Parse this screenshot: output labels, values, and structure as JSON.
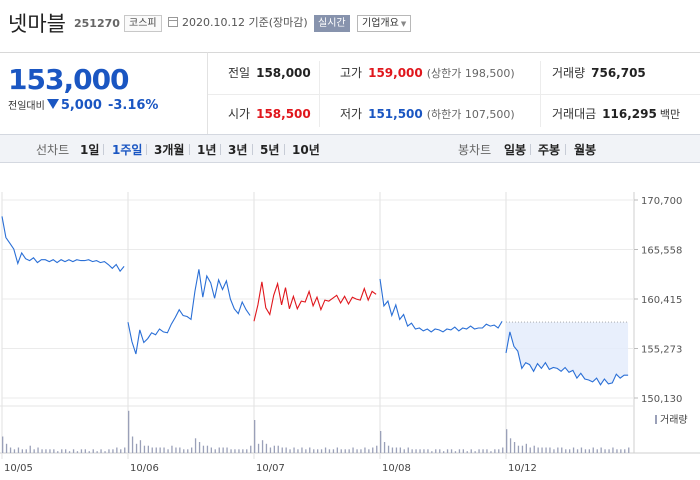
{
  "header": {
    "name": "넷마블",
    "code": "251270",
    "market": "코스피",
    "date": "2020.10.12",
    "basis": "기준(장마감)",
    "realtime_label": "실시간",
    "overview_label": "기업개요"
  },
  "price": {
    "current": "153,000",
    "change_label": "전일대비",
    "change": "5,000",
    "rate": "-3.16%"
  },
  "quotes": {
    "prev_close_label": "전일",
    "prev_close": "158,000",
    "high_label": "고가",
    "high": "159,000",
    "upper_limit": "(상한가 198,500)",
    "volume_label": "거래량",
    "volume": "756,705",
    "open_label": "시가",
    "open": "158,500",
    "low_label": "저가",
    "low": "151,500",
    "lower_limit": "(하한가 107,500)",
    "amount_label": "거래대금",
    "amount": "116,295",
    "amount_unit": "백만"
  },
  "tabs": {
    "line_label": "선차트",
    "line_periods": [
      "1일",
      "1주일",
      "3개월",
      "1년",
      "3년",
      "5년",
      "10년"
    ],
    "selected_period": "1주일",
    "candle_label": "봉차트",
    "candle_periods": [
      "일봉",
      "주봉",
      "월봉"
    ]
  },
  "colors": {
    "accent": "#1a56c2",
    "up": "#e0161c",
    "down": "#1a56c2",
    "line": "#2a6fd6",
    "volume": "#9aa0b8"
  },
  "chart_data": {
    "type": "line",
    "x_labels": [
      "10/05",
      "10/06",
      "10/07",
      "10/08",
      "10/12"
    ],
    "y_ticks": [
      "170,700",
      "165,558",
      "160,415",
      "155,273",
      "150,130"
    ],
    "ylim": [
      150130,
      170700
    ],
    "legend_volume": "거래량",
    "prev_close": 158000,
    "series": [
      {
        "day": "10/05",
        "values": [
          169000,
          166800,
          166200,
          165600,
          164100,
          165200,
          164600,
          164400,
          164700,
          164200,
          164500,
          164500,
          164300,
          164500,
          164200,
          164500,
          164300,
          164500,
          164300,
          164500,
          164400,
          164400,
          164500,
          164300,
          164400,
          164200,
          164300,
          164000,
          163600,
          164000,
          163300,
          163800
        ]
      },
      {
        "day": "10/06",
        "values": [
          158000,
          156000,
          154700,
          157200,
          155900,
          156300,
          156900,
          156700,
          157300,
          157000,
          156900,
          157800,
          158500,
          159300,
          158700,
          158600,
          158300,
          161200,
          163500,
          160600,
          162800,
          162100,
          160500,
          162400,
          161400,
          162300,
          160400,
          159400,
          158900,
          160100,
          159300,
          158700
        ]
      },
      {
        "day": "10/07",
        "values": [
          158100,
          159800,
          162200,
          159500,
          158800,
          160800,
          162000,
          159800,
          161600,
          159400,
          160700,
          159400,
          160200,
          160100,
          161200,
          159700,
          160600,
          159300,
          160300,
          160200,
          160500,
          160800,
          160000,
          160700,
          159900,
          160600,
          160400,
          160300,
          161500,
          160300,
          161200,
          160900
        ]
      },
      {
        "day": "10/08",
        "values": [
          162500,
          159700,
          160200,
          158700,
          159800,
          158300,
          158800,
          157600,
          157900,
          157300,
          157400,
          157100,
          157300,
          157000,
          157300,
          157200,
          157000,
          157300,
          157200,
          157500,
          157100,
          157400,
          157300,
          157600,
          157300,
          157400,
          157400,
          157800,
          157600,
          157700,
          157400,
          158100
        ]
      },
      {
        "day": "10/12",
        "values": [
          154800,
          157000,
          155500,
          155000,
          153200,
          153800,
          153600,
          152900,
          153700,
          153200,
          153800,
          153100,
          153300,
          153200,
          152900,
          153300,
          152800,
          153000,
          152200,
          152700,
          152100,
          152000,
          151800,
          152200,
          151500,
          152100,
          151600,
          151700,
          152600,
          152200,
          152500,
          152500
        ]
      }
    ],
    "volume": {
      "10/05": [
        9,
        5,
        3,
        2,
        3,
        2,
        2,
        4,
        2,
        3,
        2,
        2,
        2,
        2,
        1,
        2,
        2,
        1,
        2,
        1,
        2,
        2,
        1,
        2,
        1,
        2,
        1,
        2,
        2,
        3,
        2,
        3
      ],
      "10/06": [
        23,
        9,
        5,
        7,
        4,
        4,
        3,
        3,
        3,
        3,
        2,
        4,
        3,
        3,
        2,
        2,
        3,
        8,
        6,
        4,
        4,
        3,
        2,
        3,
        3,
        3,
        2,
        2,
        2,
        2,
        2,
        4
      ],
      "10/07": [
        18,
        5,
        7,
        5,
        3,
        4,
        4,
        3,
        3,
        2,
        3,
        2,
        3,
        2,
        3,
        2,
        2,
        2,
        3,
        2,
        2,
        3,
        2,
        2,
        2,
        3,
        2,
        2,
        3,
        2,
        3,
        4
      ],
      "10/08": [
        12,
        6,
        4,
        3,
        3,
        3,
        2,
        3,
        2,
        2,
        2,
        2,
        2,
        1,
        2,
        2,
        1,
        2,
        2,
        1,
        2,
        2,
        1,
        2,
        1,
        2,
        2,
        2,
        1,
        2,
        2,
        3
      ],
      "10/12": [
        13,
        8,
        6,
        4,
        4,
        5,
        3,
        4,
        3,
        3,
        3,
        3,
        2,
        3,
        3,
        2,
        2,
        3,
        2,
        3,
        2,
        2,
        3,
        2,
        3,
        2,
        2,
        3,
        2,
        2,
        2,
        3
      ]
    }
  }
}
